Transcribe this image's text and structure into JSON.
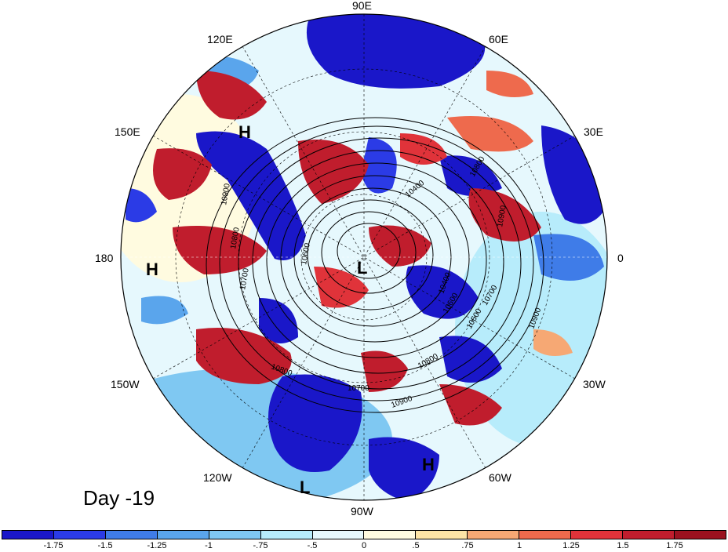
{
  "day_label": "Day -19",
  "longitude_labels": [
    "90E",
    "120E",
    "60E",
    "150E",
    "30E",
    "180",
    "0",
    "150W",
    "30W",
    "120W",
    "60W",
    "90W"
  ],
  "pressure_centers": [
    "H",
    "H",
    "L",
    "L",
    "H"
  ],
  "contour_labels": [
    "10900",
    "10800",
    "10700",
    "10600",
    "10400",
    "10800",
    "10600",
    "10700",
    "10900",
    "10800",
    "10700",
    "10600",
    "10900",
    "10800",
    "10400",
    "10900"
  ],
  "colorbar": {
    "ticks": [
      "-1.75",
      "-1.5",
      "-1.25",
      "-1",
      "-.75",
      "-.5",
      "0",
      ".5",
      ".75",
      "1",
      "1.25",
      "1.5",
      "1.75"
    ],
    "colors": [
      "#1a17c9",
      "#2b3be6",
      "#3f7ce8",
      "#5aa5ec",
      "#7fc8f2",
      "#b7ecfb",
      "#e6f8fd",
      "#fffbe0",
      "#fde4a6",
      "#f6a874",
      "#ee6a4d",
      "#e0333a",
      "#c01d2d",
      "#9b111f"
    ]
  }
}
